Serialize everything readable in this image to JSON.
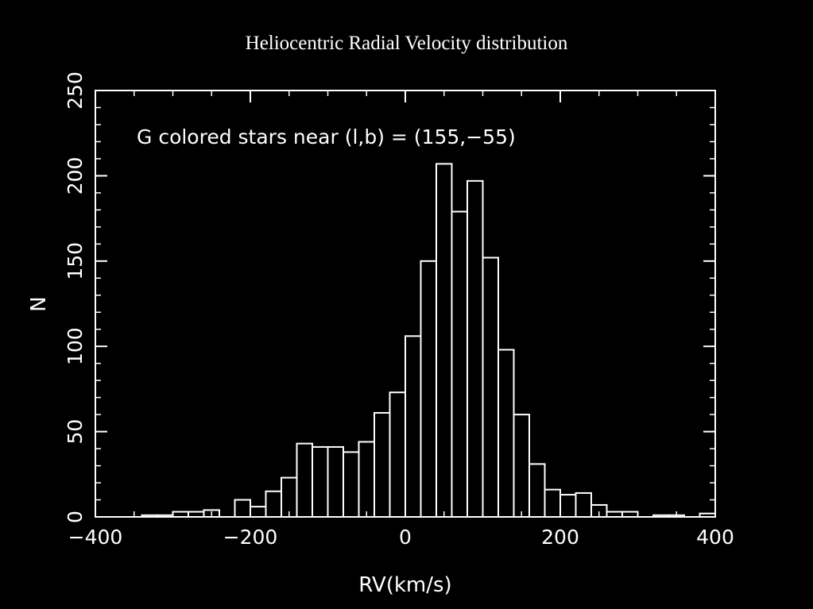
{
  "page": {
    "title": "Heliocentric Radial Velocity distribution"
  },
  "colors": {
    "background": "#000000",
    "foreground": "#ffffff"
  },
  "chart_data": {
    "type": "bar",
    "subtype": "histogram",
    "xlabel": "RV(km/s)",
    "ylabel": "N",
    "annotation": "G colored stars near (l,b) = (155,−55)",
    "xlim": [
      -400,
      400
    ],
    "ylim": [
      0,
      250
    ],
    "x_ticks": [
      -400,
      -200,
      0,
      200,
      400
    ],
    "x_tick_labels": [
      "−400",
      "−200",
      "0",
      "200",
      "400"
    ],
    "y_ticks": [
      0,
      50,
      100,
      150,
      200,
      250
    ],
    "y_tick_labels": [
      "0",
      "50",
      "100",
      "150",
      "200",
      "250"
    ],
    "x_minor_step": 50,
    "y_minor_step": 10,
    "grid": false,
    "bin_width": 20,
    "bins": [
      {
        "x0": -340,
        "count": 1
      },
      {
        "x0": -320,
        "count": 1
      },
      {
        "x0": -300,
        "count": 3
      },
      {
        "x0": -280,
        "count": 3
      },
      {
        "x0": -260,
        "count": 4
      },
      {
        "x0": -240,
        "count": 0
      },
      {
        "x0": -220,
        "count": 10
      },
      {
        "x0": -200,
        "count": 6
      },
      {
        "x0": -180,
        "count": 15
      },
      {
        "x0": -160,
        "count": 23
      },
      {
        "x0": -140,
        "count": 43
      },
      {
        "x0": -120,
        "count": 41
      },
      {
        "x0": -100,
        "count": 41
      },
      {
        "x0": -80,
        "count": 38
      },
      {
        "x0": -60,
        "count": 44
      },
      {
        "x0": -40,
        "count": 61
      },
      {
        "x0": -20,
        "count": 73
      },
      {
        "x0": 0,
        "count": 106
      },
      {
        "x0": 20,
        "count": 150
      },
      {
        "x0": 40,
        "count": 207
      },
      {
        "x0": 60,
        "count": 179
      },
      {
        "x0": 80,
        "count": 197
      },
      {
        "x0": 100,
        "count": 152
      },
      {
        "x0": 120,
        "count": 98
      },
      {
        "x0": 140,
        "count": 60
      },
      {
        "x0": 160,
        "count": 31
      },
      {
        "x0": 180,
        "count": 16
      },
      {
        "x0": 200,
        "count": 13
      },
      {
        "x0": 220,
        "count": 14
      },
      {
        "x0": 240,
        "count": 7
      },
      {
        "x0": 260,
        "count": 3
      },
      {
        "x0": 280,
        "count": 3
      },
      {
        "x0": 300,
        "count": 0
      },
      {
        "x0": 320,
        "count": 1
      },
      {
        "x0": 340,
        "count": 1
      },
      {
        "x0": 360,
        "count": 0
      },
      {
        "x0": 380,
        "count": 2
      }
    ]
  }
}
